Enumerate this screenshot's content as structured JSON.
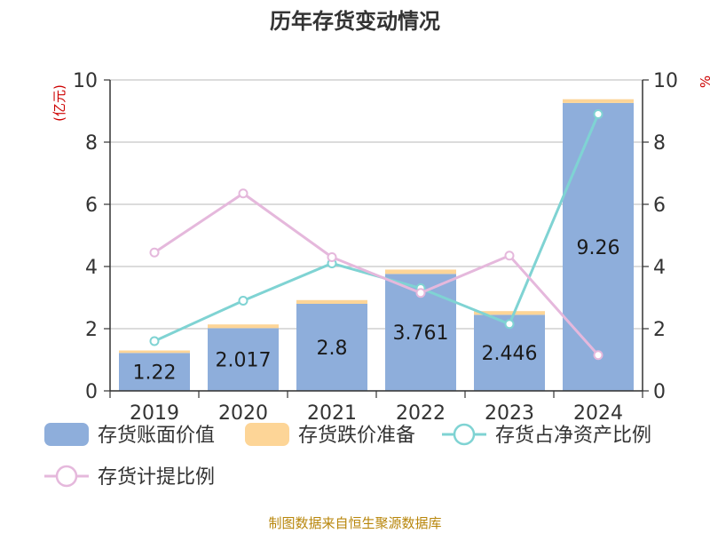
{
  "chart_data": {
    "type": "bar",
    "title": "历年存货变动情况",
    "ylabel_left": "(亿元)",
    "ylabel_right": "%",
    "ylim_left": [
      0,
      10
    ],
    "ylim_right": [
      0,
      10
    ],
    "yticks": [
      "0",
      "2",
      "4",
      "6",
      "8",
      "10"
    ],
    "categories": [
      "2019",
      "2020",
      "2021",
      "2022",
      "2023",
      "2024"
    ],
    "series": [
      {
        "name": "存货账面价值",
        "kind": "bar",
        "axis": "left",
        "color": "#8eaedb",
        "values": [
          1.22,
          2.017,
          2.8,
          3.761,
          2.446,
          9.26
        ],
        "labels": [
          "1.22",
          "2.017",
          "2.8",
          "3.761",
          "2.446",
          "9.26"
        ]
      },
      {
        "name": "存货跌价准备",
        "kind": "bar-stacked",
        "axis": "left",
        "color": "#fdd597",
        "values": [
          0.08,
          0.12,
          0.12,
          0.14,
          0.12,
          0.12
        ]
      },
      {
        "name": "存货占净资产比例",
        "kind": "line",
        "axis": "right",
        "color": "#7fd3d3",
        "values": [
          1.6,
          2.9,
          4.1,
          3.3,
          2.15,
          8.9
        ]
      },
      {
        "name": "存货计提比例",
        "kind": "line",
        "axis": "right",
        "color": "#e5b8dc",
        "values": [
          4.45,
          6.35,
          4.3,
          3.15,
          4.35,
          1.15
        ]
      }
    ],
    "grid": true,
    "legend_position": "bottom"
  },
  "source_text": "制图数据来自恒生聚源数据库"
}
